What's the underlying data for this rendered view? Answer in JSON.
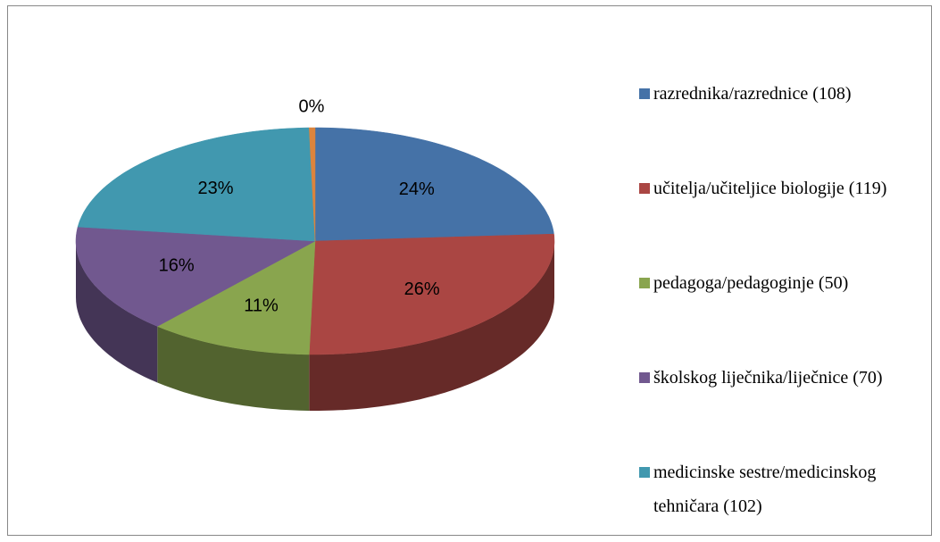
{
  "chart_data": {
    "type": "pie3d",
    "categories": [
      "razrednika/razrednice (108)",
      "učitelja/učiteljice biologije (119)",
      "pedagoga/pedagoginje (50)",
      "školskog liječnika/liječnice (70)",
      "medicinske sestre/medicinskog tehničara (102)",
      null
    ],
    "values": [
      24.1,
      26.5,
      11.1,
      15.6,
      22.7,
      0.4
    ],
    "value_labels": [
      "24%",
      "26%",
      "11%",
      "16%",
      "23%",
      "0%"
    ],
    "colors": [
      "#4572a7",
      "#aa4643",
      "#89a54e",
      "#71588f",
      "#4198af",
      "#db843d"
    ],
    "legend": "right"
  }
}
